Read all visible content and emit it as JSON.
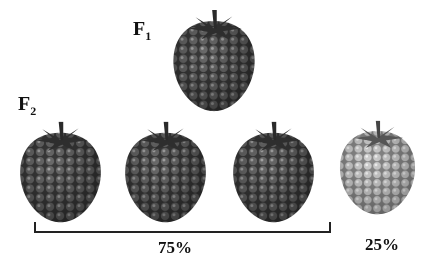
{
  "labels": {
    "f1": {
      "main": "F",
      "sub": "1"
    },
    "f2": {
      "main": "F",
      "sub": "2"
    }
  },
  "percentages": {
    "dominant": "75%",
    "recessive": "25%"
  }
}
